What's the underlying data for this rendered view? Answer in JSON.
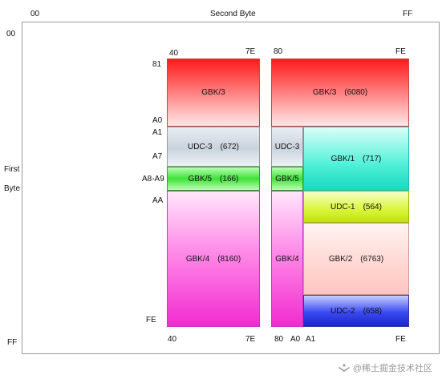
{
  "axes": {
    "x_title": "Second Byte",
    "x_start": "00",
    "x_end": "FF",
    "y_title_line1": "First",
    "y_title_line2": "Byte",
    "y_start": "00",
    "y_end": "FF"
  },
  "left_region": {
    "top_x_start": "40",
    "top_x_end": "7E",
    "bottom_x_start": "40",
    "bottom_x_end": "7E",
    "row_labels": {
      "r81": "81",
      "rA0": "A0",
      "rA1": "A1",
      "rA7": "A7",
      "rA8A9": "A8-A9",
      "rAA": "AA",
      "rFE": "FE"
    }
  },
  "right_region": {
    "top_x_start": "80",
    "top_x_end": "FE",
    "bottom_80": "80",
    "bottom_A0": "A0",
    "bottom_A1": "A1",
    "bottom_FE": "FE"
  },
  "blocks": {
    "left_gbk3": {
      "name": "GBK/3"
    },
    "left_udc3": {
      "name": "UDC-3",
      "count": "(672)"
    },
    "left_gbk5": {
      "name": "GBK/5",
      "count": "(166)"
    },
    "left_gbk4": {
      "name": "GBK/4",
      "count": "(8160)"
    },
    "right_gbk3": {
      "name": "GBK/3",
      "count": "(6080)"
    },
    "right_udc3": {
      "name": "UDC-3"
    },
    "right_gbk5": {
      "name": "GBK/5"
    },
    "right_gbk4": {
      "name": "GBK/4"
    },
    "gbk1": {
      "name": "GBK/1",
      "count": "(717)"
    },
    "udc1": {
      "name": "UDC-1",
      "count": "(564)"
    },
    "gbk2": {
      "name": "GBK/2",
      "count": "(6763)"
    },
    "udc2": {
      "name": "UDC-2",
      "count": "(658)"
    }
  },
  "watermark": {
    "text": "@稀土掘金技术社区",
    "icon": "juejin-logo-icon"
  },
  "colors": {
    "gbk3": "#ff1a1a",
    "udc3": "#c9d3dd",
    "gbk5": "#3fe23a",
    "gbk4": "#f22bd0",
    "gbk1": "#4ff0d8",
    "udc1": "#d8f63a",
    "gbk2": "#ffd6d1",
    "udc2": "#3a4af2"
  }
}
